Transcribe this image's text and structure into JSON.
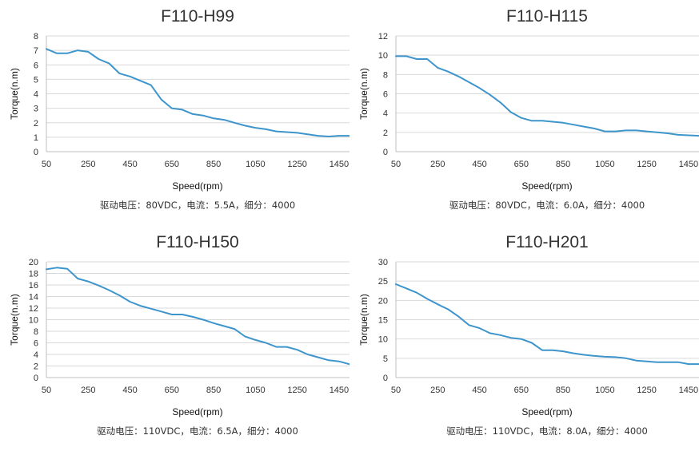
{
  "chart_data": [
    {
      "type": "line",
      "title": "F110-H99",
      "xlabel": "Speed(rpm)",
      "ylabel": "Torque(n.m)",
      "caption": "驱动电压：80VDC，电流：5.5A，细分：4000",
      "xlim": [
        50,
        1500
      ],
      "ylim": [
        0,
        8
      ],
      "xticks": [
        50,
        250,
        450,
        650,
        850,
        1050,
        1250,
        1450
      ],
      "yticks": [
        0,
        1,
        2,
        3,
        4,
        5,
        6,
        7,
        8
      ],
      "grid": true,
      "color": "#3d95cc",
      "series": [
        {
          "x": [
            50,
            100,
            150,
            200,
            250,
            300,
            350,
            400,
            450,
            500,
            550,
            600,
            650,
            700,
            750,
            800,
            850,
            900,
            950,
            1000,
            1050,
            1100,
            1150,
            1200,
            1250,
            1300,
            1350,
            1400,
            1450,
            1500
          ],
          "y": [
            7.1,
            6.8,
            6.8,
            7.0,
            6.9,
            6.4,
            6.1,
            5.4,
            5.2,
            4.9,
            4.6,
            3.6,
            3.0,
            2.9,
            2.6,
            2.5,
            2.3,
            2.2,
            2.0,
            1.8,
            1.65,
            1.55,
            1.4,
            1.35,
            1.3,
            1.2,
            1.1,
            1.05,
            1.1,
            1.1
          ]
        }
      ]
    },
    {
      "type": "line",
      "title": "F110-H115",
      "xlabel": "Speed(rpm)",
      "ylabel": "Torque(n.m)",
      "caption": "驱动电压：80VDC，电流：6.0A，细分：4000",
      "xlim": [
        50,
        1500
      ],
      "ylim": [
        0,
        12
      ],
      "xticks": [
        50,
        250,
        450,
        650,
        850,
        1050,
        1250,
        1450
      ],
      "yticks": [
        0,
        2,
        4,
        6,
        8,
        10,
        12
      ],
      "grid": true,
      "color": "#3d95cc",
      "series": [
        {
          "x": [
            50,
            100,
            150,
            200,
            250,
            300,
            350,
            400,
            450,
            500,
            550,
            600,
            650,
            700,
            750,
            800,
            850,
            900,
            950,
            1000,
            1050,
            1100,
            1150,
            1200,
            1250,
            1300,
            1350,
            1400,
            1450,
            1500
          ],
          "y": [
            9.9,
            9.9,
            9.6,
            9.6,
            8.7,
            8.3,
            7.8,
            7.2,
            6.6,
            5.9,
            5.1,
            4.1,
            3.5,
            3.2,
            3.2,
            3.1,
            3.0,
            2.8,
            2.6,
            2.4,
            2.1,
            2.1,
            2.2,
            2.2,
            2.1,
            2.0,
            1.9,
            1.75,
            1.7,
            1.65
          ]
        }
      ]
    },
    {
      "type": "line",
      "title": "F110-H150",
      "xlabel": "Speed(rpm)",
      "ylabel": "Torque(n.m)",
      "caption": "驱动电压：110VDC，电流：6.5A，细分：4000",
      "xlim": [
        50,
        1500
      ],
      "ylim": [
        0,
        20
      ],
      "xticks": [
        50,
        250,
        450,
        650,
        850,
        1050,
        1250,
        1450
      ],
      "yticks": [
        0,
        2,
        4,
        6,
        8,
        10,
        12,
        14,
        16,
        18,
        20
      ],
      "grid": true,
      "color": "#3d95cc",
      "series": [
        {
          "x": [
            50,
            100,
            150,
            200,
            250,
            300,
            350,
            400,
            450,
            500,
            550,
            600,
            650,
            700,
            750,
            800,
            850,
            900,
            950,
            1000,
            1050,
            1100,
            1150,
            1200,
            1250,
            1300,
            1350,
            1400,
            1450,
            1500
          ],
          "y": [
            18.7,
            19.0,
            18.8,
            17.1,
            16.6,
            15.9,
            15.1,
            14.2,
            13.1,
            12.4,
            11.9,
            11.4,
            10.9,
            10.9,
            10.5,
            10.0,
            9.4,
            8.9,
            8.4,
            7.1,
            6.5,
            6.0,
            5.3,
            5.3,
            4.8,
            4.0,
            3.5,
            3.0,
            2.8,
            2.3
          ]
        }
      ]
    },
    {
      "type": "line",
      "title": "F110-H201",
      "xlabel": "Speed(rpm)",
      "ylabel": "Torque(n.m)",
      "caption": "驱动电压：110VDC，电流：8.0A，细分：4000",
      "xlim": [
        50,
        1500
      ],
      "ylim": [
        0,
        30
      ],
      "xticks": [
        50,
        250,
        450,
        650,
        850,
        1050,
        1250,
        1450
      ],
      "yticks": [
        0,
        5,
        10,
        15,
        20,
        25,
        30
      ],
      "grid": true,
      "color": "#3d95cc",
      "series": [
        {
          "x": [
            50,
            100,
            150,
            200,
            250,
            300,
            350,
            400,
            450,
            500,
            550,
            600,
            650,
            700,
            750,
            800,
            850,
            900,
            950,
            1000,
            1050,
            1100,
            1150,
            1200,
            1250,
            1300,
            1350,
            1400,
            1450,
            1500
          ],
          "y": [
            24.2,
            23.1,
            22.0,
            20.4,
            19.0,
            17.7,
            15.8,
            13.6,
            12.8,
            11.5,
            11.0,
            10.3,
            10.0,
            9.0,
            7.1,
            7.1,
            6.8,
            6.3,
            5.9,
            5.6,
            5.4,
            5.3,
            5.0,
            4.4,
            4.2,
            4.0,
            4.0,
            4.0,
            3.5,
            3.5
          ]
        }
      ]
    }
  ]
}
